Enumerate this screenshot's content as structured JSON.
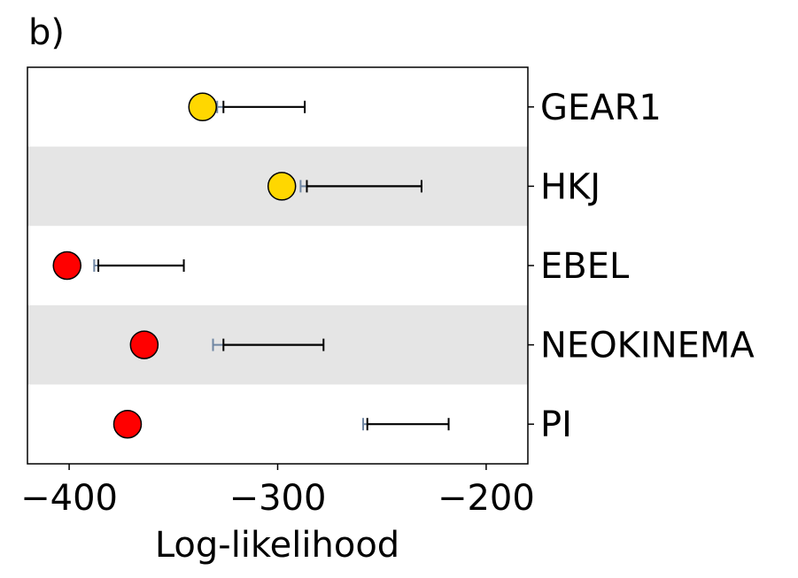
{
  "panel_label": "b)",
  "chart_data": {
    "type": "scatter",
    "title": "",
    "xlabel": "Log-likelihood",
    "ylabel": "",
    "xlim": [
      -420,
      -180
    ],
    "xticks": [
      -400,
      -300,
      -200
    ],
    "xtick_labels": [
      "−400",
      "−300",
      "−200"
    ],
    "y_axis_position": "right",
    "band_color": "#e5e5e5",
    "models": [
      {
        "name": "GEAR1",
        "value": -336,
        "marker_color": "#ffd700",
        "range_low": -329,
        "range_mid": -326,
        "range_high": -287
      },
      {
        "name": "HKJ",
        "value": -298,
        "marker_color": "#ffd700",
        "range_low": -289,
        "range_mid": -286,
        "range_high": -231
      },
      {
        "name": "EBEL",
        "value": -401,
        "marker_color": "#ff0000",
        "range_low": -388,
        "range_mid": -386,
        "range_high": -345
      },
      {
        "name": "NEOKINEMA",
        "value": -364,
        "marker_color": "#ff0000",
        "range_low": -331,
        "range_mid": -326,
        "range_high": -278
      },
      {
        "name": "PI",
        "value": -372,
        "marker_color": "#ff0000",
        "range_low": -259,
        "range_mid": -257,
        "range_high": -218
      }
    ]
  }
}
